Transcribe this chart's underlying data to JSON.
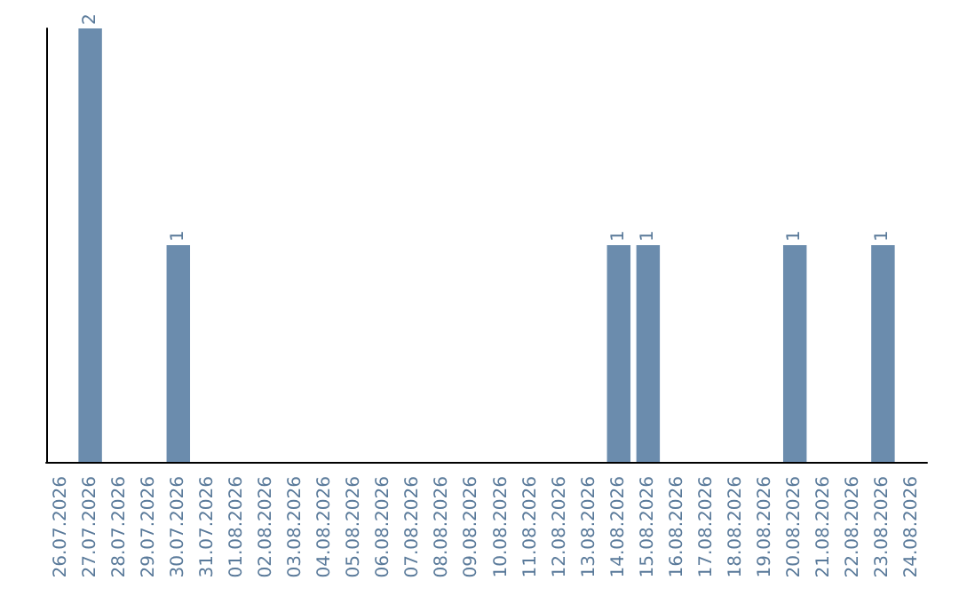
{
  "chart_data": {
    "type": "bar",
    "categories": [
      "26.07.2026",
      "27.07.2026",
      "28.07.2026",
      "29.07.2026",
      "30.07.2026",
      "31.07.2026",
      "01.08.2026",
      "02.08.2026",
      "03.08.2026",
      "04.08.2026",
      "05.08.2026",
      "06.08.2026",
      "07.08.2026",
      "08.08.2026",
      "09.08.2026",
      "10.08.2026",
      "11.08.2026",
      "12.08.2026",
      "13.08.2026",
      "14.08.2026",
      "15.08.2026",
      "16.08.2026",
      "17.08.2026",
      "18.08.2026",
      "19.08.2026",
      "20.08.2026",
      "21.08.2026",
      "22.08.2026",
      "23.08.2026",
      "24.08.2026"
    ],
    "values": [
      0,
      2,
      0,
      0,
      1,
      0,
      0,
      0,
      0,
      0,
      0,
      0,
      0,
      0,
      0,
      0,
      0,
      0,
      0,
      1,
      1,
      0,
      0,
      0,
      0,
      1,
      0,
      0,
      1,
      0
    ],
    "value_labels": [
      null,
      "2",
      null,
      null,
      "1",
      null,
      null,
      null,
      null,
      null,
      null,
      null,
      null,
      null,
      null,
      null,
      null,
      null,
      null,
      "1",
      "1",
      null,
      null,
      null,
      null,
      "1",
      null,
      null,
      "1",
      null
    ],
    "color": "#6b8cad",
    "grid": false,
    "tick_labels": "x"
  }
}
